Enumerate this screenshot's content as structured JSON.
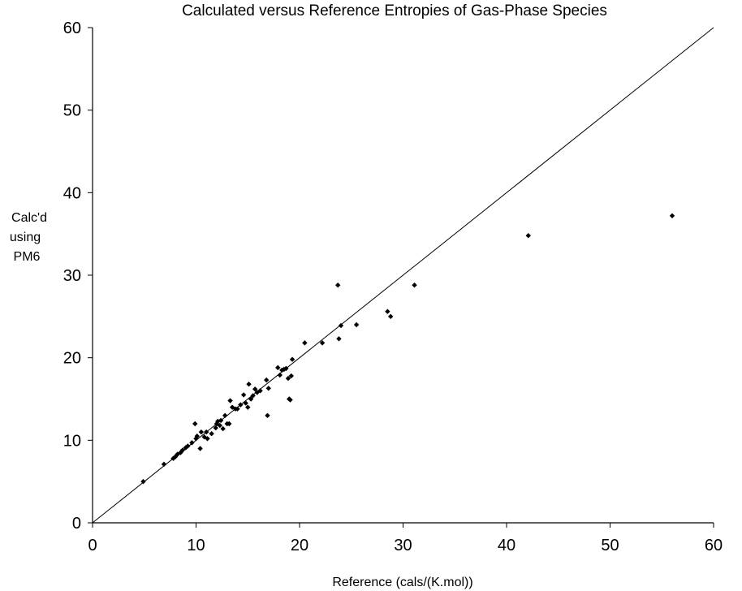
{
  "chart_data": {
    "type": "scatter",
    "title": "Calculated versus Reference Entropies of Gas-Phase Species",
    "xlabel": "Reference (cals/(K.mol))",
    "ylabel_lines": [
      "Calc'd",
      "using",
      "PM6"
    ],
    "xlim": [
      0,
      60
    ],
    "ylim": [
      0,
      60
    ],
    "xticks": [
      "0",
      "10",
      "20",
      "30",
      "40",
      "50",
      "60"
    ],
    "yticks": [
      "0",
      "10",
      "20",
      "30",
      "40",
      "50",
      "60"
    ],
    "grid": false,
    "reference_line": {
      "x": [
        0,
        60
      ],
      "y": [
        0,
        60
      ]
    },
    "colors": {
      "points": "#000000",
      "axes": "#000000",
      "line": "#000000"
    },
    "points": [
      [
        4.9,
        5.0
      ],
      [
        6.9,
        7.1
      ],
      [
        7.8,
        7.8
      ],
      [
        8.0,
        8.0
      ],
      [
        8.2,
        8.3
      ],
      [
        8.5,
        8.5
      ],
      [
        8.7,
        8.8
      ],
      [
        9.0,
        9.1
      ],
      [
        9.2,
        9.3
      ],
      [
        9.6,
        9.7
      ],
      [
        10.0,
        10.2
      ],
      [
        10.1,
        10.5
      ],
      [
        9.9,
        12.0
      ],
      [
        10.4,
        9.0
      ],
      [
        10.5,
        11.0
      ],
      [
        10.8,
        10.4
      ],
      [
        11.0,
        11.0
      ],
      [
        11.1,
        10.2
      ],
      [
        11.5,
        10.8
      ],
      [
        11.9,
        11.5
      ],
      [
        12.0,
        12.0
      ],
      [
        12.1,
        12.3
      ],
      [
        12.3,
        11.8
      ],
      [
        12.4,
        12.4
      ],
      [
        12.6,
        11.4
      ],
      [
        12.8,
        13.0
      ],
      [
        13.0,
        12.0
      ],
      [
        13.2,
        12.0
      ],
      [
        13.3,
        14.8
      ],
      [
        13.5,
        14.0
      ],
      [
        13.8,
        13.8
      ],
      [
        14.0,
        13.8
      ],
      [
        14.3,
        14.3
      ],
      [
        14.6,
        15.5
      ],
      [
        14.8,
        14.5
      ],
      [
        15.0,
        14.0
      ],
      [
        15.1,
        16.8
      ],
      [
        15.3,
        15.0
      ],
      [
        15.5,
        15.4
      ],
      [
        15.7,
        16.2
      ],
      [
        15.9,
        15.8
      ],
      [
        16.2,
        16.0
      ],
      [
        16.8,
        17.3
      ],
      [
        16.9,
        13.0
      ],
      [
        17.0,
        16.3
      ],
      [
        17.9,
        18.8
      ],
      [
        18.1,
        17.9
      ],
      [
        18.3,
        18.5
      ],
      [
        18.5,
        18.6
      ],
      [
        18.7,
        18.7
      ],
      [
        18.9,
        17.5
      ],
      [
        19.0,
        15.0
      ],
      [
        19.1,
        14.9
      ],
      [
        19.2,
        17.8
      ],
      [
        19.3,
        19.8
      ],
      [
        20.5,
        21.8
      ],
      [
        22.2,
        21.8
      ],
      [
        23.7,
        28.8
      ],
      [
        23.8,
        22.3
      ],
      [
        24.0,
        23.9
      ],
      [
        25.5,
        24.0
      ],
      [
        28.5,
        25.6
      ],
      [
        28.8,
        25.0
      ],
      [
        31.1,
        28.8
      ],
      [
        42.1,
        34.8
      ],
      [
        56.0,
        37.2
      ]
    ]
  }
}
